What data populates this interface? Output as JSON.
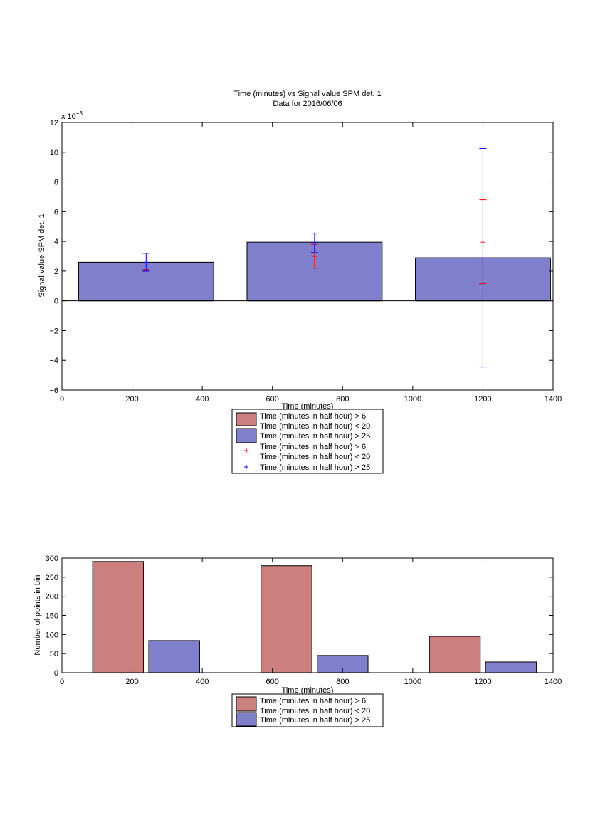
{
  "chart_data": [
    {
      "type": "bar",
      "title": "Time (minutes) vs Signal value SPM det. 1",
      "subtitle": "Data for 2016/06/06",
      "xlabel": "Time (minutes)",
      "ylabel": "Signal value SPM det. 1",
      "y_exponent": "x 10",
      "y_exponent_power": "−3",
      "xlim": [
        0,
        1400
      ],
      "ylim": [
        -6,
        12
      ],
      "y_scale_note": "values in units of 1e-3",
      "xticks": [
        0,
        200,
        400,
        600,
        800,
        1000,
        1200,
        1400
      ],
      "yticks": [
        -6,
        -4,
        -2,
        0,
        2,
        4,
        6,
        8,
        10,
        12
      ],
      "grid": false,
      "series": [
        {
          "name": "Time (minutes in half hour) > 6\nTime (minutes in half hour) < 20",
          "kind": "bar",
          "color": "#cc7f7f",
          "x": [
            240,
            720,
            1200
          ],
          "values": [
            2.55,
            3.85,
            2.8
          ]
        },
        {
          "name": "Time (minutes in half hour) > 25",
          "kind": "bar",
          "color": "#7f7fcc",
          "x": [
            240,
            720,
            1200
          ],
          "values": [
            2.6,
            3.95,
            2.9
          ]
        },
        {
          "name": "Time (minutes in half hour) > 6\nTime (minutes in half hour) < 20",
          "kind": "errorbar",
          "color": "#ff0000",
          "x": [
            240,
            720,
            1200
          ],
          "values": [
            2.05,
            3.0,
            3.95
          ],
          "lower": [
            2.0,
            2.2,
            1.15
          ],
          "upper": [
            2.1,
            3.8,
            6.8
          ]
        },
        {
          "name": "Time (minutes in half hour) > 25",
          "kind": "errorbar",
          "color": "#0000ff",
          "x": [
            240,
            720,
            1200
          ],
          "values": [
            2.6,
            3.9,
            2.9
          ],
          "lower": [
            2.0,
            3.25,
            -4.45
          ],
          "upper": [
            3.2,
            4.55,
            10.25
          ]
        }
      ],
      "legend": {
        "placement": "bottom-center",
        "entries": [
          {
            "label_line1": "Time (minutes in half hour) > 6",
            "label_line2": "Time (minutes in half hour) < 20",
            "marker": "patch",
            "color": "#cc7f7f"
          },
          {
            "label_line1": "Time (minutes in half hour) > 25",
            "label_line2": "",
            "marker": "patch",
            "color": "#7f7fcc"
          },
          {
            "label_line1": "Time (minutes in half hour) > 6",
            "label_line2": "Time (minutes in half hour) < 20",
            "marker": "+",
            "color": "#ff0000"
          },
          {
            "label_line1": "Time (minutes in half hour) > 25",
            "label_line2": "",
            "marker": "+",
            "color": "#0000ff"
          }
        ]
      }
    },
    {
      "type": "bar",
      "title": "",
      "xlabel": "Time (minutes)",
      "ylabel": "Number of points in bin",
      "xlim": [
        0,
        1400
      ],
      "ylim": [
        0,
        300
      ],
      "xticks": [
        0,
        200,
        400,
        600,
        800,
        1000,
        1200,
        1400
      ],
      "yticks": [
        0,
        50,
        100,
        150,
        200,
        250,
        300
      ],
      "grid": false,
      "series": [
        {
          "name": "Time (minutes in half hour) > 6\nTime (minutes in half hour) < 20",
          "kind": "bar",
          "color": "#cc7f7f",
          "x": [
            160,
            640,
            1120
          ],
          "values": [
            291,
            280,
            95
          ]
        },
        {
          "name": "Time (minutes in half hour) > 25",
          "kind": "bar",
          "color": "#7f7fcc",
          "x": [
            320,
            800,
            1280
          ],
          "values": [
            84,
            45,
            28
          ]
        }
      ],
      "legend": {
        "placement": "bottom-center",
        "entries": [
          {
            "label_line1": "Time (minutes in half hour) > 6",
            "label_line2": "Time (minutes in half hour) < 20",
            "marker": "patch",
            "color": "#cc7f7f"
          },
          {
            "label_line1": "Time (minutes in half hour) > 25",
            "label_line2": "",
            "marker": "patch",
            "color": "#7f7fcc"
          }
        ]
      }
    }
  ]
}
